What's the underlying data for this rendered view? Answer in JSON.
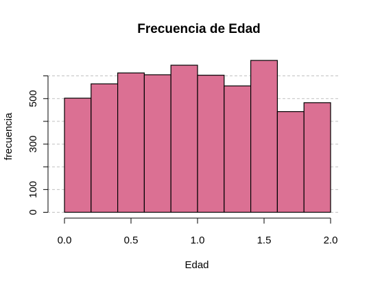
{
  "chart_data": {
    "type": "bar",
    "title": "Frecuencia de Edad",
    "xlabel": "Edad",
    "ylabel": "frecuencia",
    "bin_edges": [
      0.0,
      0.2,
      0.4,
      0.6,
      0.8,
      1.0,
      1.2,
      1.4,
      1.6,
      1.8,
      2.0
    ],
    "values": [
      502,
      565,
      613,
      605,
      647,
      603,
      556,
      668,
      443,
      482
    ],
    "xlim": [
      0.0,
      2.0
    ],
    "ylim": [
      0,
      700
    ],
    "x_ticks": [
      0.0,
      0.5,
      1.0,
      1.5,
      2.0
    ],
    "x_tick_labels": [
      "0.0",
      "0.5",
      "1.0",
      "1.5",
      "2.0"
    ],
    "y_ticks": [
      0,
      100,
      200,
      300,
      400,
      500,
      600
    ],
    "y_tick_labels": [
      "0",
      "100",
      "",
      "300",
      "",
      "500",
      ""
    ],
    "grid": "horizontal dashed",
    "bar_color": "#db7093",
    "bar_edge_color": "#000000",
    "grid_color": "#c0c0c0"
  }
}
